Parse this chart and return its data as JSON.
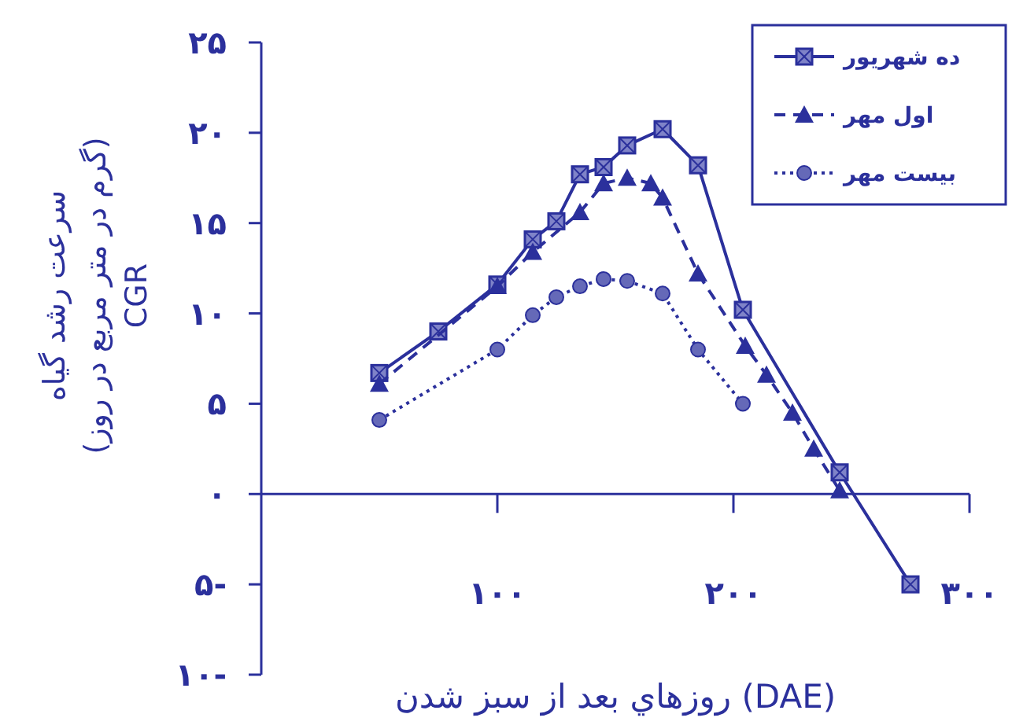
{
  "chart_data": {
    "type": "line",
    "xlabel": "روزهاي بعد از سبز شدن (DAE)",
    "ylabel": "سرعت رشد گیاه\n(گرم در متر مربع در روز)\nCGR",
    "xlim": [
      0,
      300
    ],
    "ylim": [
      -10,
      25
    ],
    "xticks": [
      {
        "value": 100,
        "label": "۱۰۰"
      },
      {
        "value": 200,
        "label": "۲۰۰"
      },
      {
        "value": 300,
        "label": "۳۰۰"
      }
    ],
    "yticks": [
      {
        "value": -10,
        "label": "۱۰-"
      },
      {
        "value": -5,
        "label": "۵-"
      },
      {
        "value": 0,
        "label": "۰"
      },
      {
        "value": 5,
        "label": "۵"
      },
      {
        "value": 10,
        "label": "۱۰"
      },
      {
        "value": 15,
        "label": "۱۵"
      },
      {
        "value": 20,
        "label": "۲۰"
      },
      {
        "value": 25,
        "label": "۲۵"
      }
    ],
    "grid": false,
    "legend": "top right",
    "series": [
      {
        "name": "ده شهریور",
        "color": "#2b309c",
        "marker": "square",
        "line_style": "solid",
        "x": [
          50,
          75,
          100,
          115,
          125,
          135,
          145,
          155,
          170,
          185,
          204,
          245,
          275
        ],
        "values": [
          6.7,
          9.0,
          11.6,
          14.1,
          15.1,
          17.7,
          18.1,
          19.3,
          20.2,
          18.2,
          10.2,
          1.2,
          -5
        ]
      },
      {
        "name": "اول مهر",
        "color": "#2b309c",
        "marker": "triangle",
        "line_style": "dashed",
        "x": [
          50,
          100,
          115,
          135,
          145,
          155,
          165,
          170,
          185,
          205,
          214,
          225,
          234,
          245
        ],
        "values": [
          6.1,
          11.5,
          13.4,
          15.6,
          17.2,
          17.5,
          17.2,
          16.4,
          12.2,
          8.2,
          6.6,
          4.5,
          2.5,
          0.2
        ]
      },
      {
        "name": "بیست مهر",
        "color": "#2b309c",
        "marker": "circle",
        "line_style": "dotted",
        "x": [
          50,
          100,
          115,
          125,
          135,
          145,
          155,
          170,
          185,
          204
        ],
        "values": [
          4.1,
          8.0,
          9.9,
          10.9,
          11.5,
          11.9,
          11.8,
          11.1,
          8.0,
          5.0
        ]
      }
    ]
  }
}
